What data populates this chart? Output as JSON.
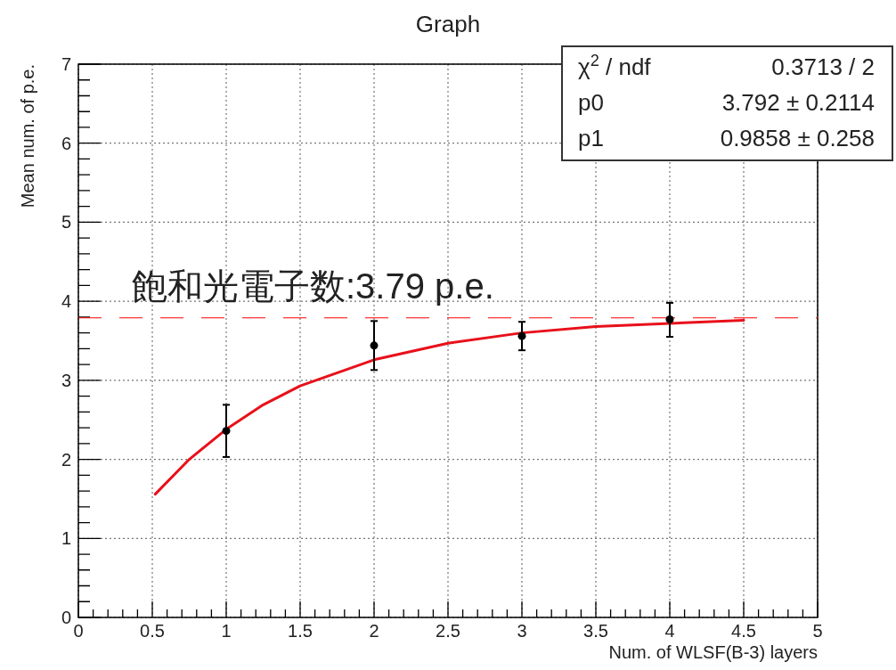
{
  "chart_data": {
    "type": "scatter",
    "title": "Graph",
    "xlabel": "Num. of WLSF(B-3) layers",
    "ylabel": "Mean num. of p.e.",
    "xlim": [
      0,
      5
    ],
    "xticks": [
      0,
      0.5,
      1,
      1.5,
      2,
      2.5,
      3,
      3.5,
      4,
      4.5,
      5
    ],
    "ylim": [
      0,
      7
    ],
    "yticks": [
      0,
      1,
      2,
      3,
      4,
      5,
      6,
      7
    ],
    "grid": true,
    "series": [
      {
        "color": "#000000",
        "marker": "circle",
        "x": [
          1,
          2,
          3,
          4
        ],
        "values": [
          2.36,
          3.44,
          3.56,
          3.77
        ],
        "errors": [
          [
            2.03,
            2.69
          ],
          [
            3.13,
            3.75
          ],
          [
            3.38,
            3.74
          ],
          [
            3.55,
            3.98
          ]
        ]
      },
      {
        "type": "line",
        "color": "#e8101a",
        "marker": "none",
        "line_style": "solid",
        "x": [
          0.52,
          0.75,
          1.0,
          1.25,
          1.5,
          2.0,
          2.5,
          3.0,
          3.5,
          4.0,
          4.5
        ],
        "values": [
          1.56,
          2.0,
          2.38,
          2.69,
          2.93,
          3.26,
          3.47,
          3.6,
          3.68,
          3.72,
          3.76
        ]
      }
    ],
    "ref_lines": [
      {
        "axis": "y",
        "value": 3.79,
        "label": "飽和光電子数:3.79 p.e.",
        "color": "#ff0000",
        "line_style": "dashed"
      }
    ],
    "annotations": [
      "χ$^{2}$ / ndf",
      "0.3713 / 2",
      "p0",
      "3.792 ± 0.2114",
      "p1",
      "0.9858 ± 0.258"
    ]
  }
}
